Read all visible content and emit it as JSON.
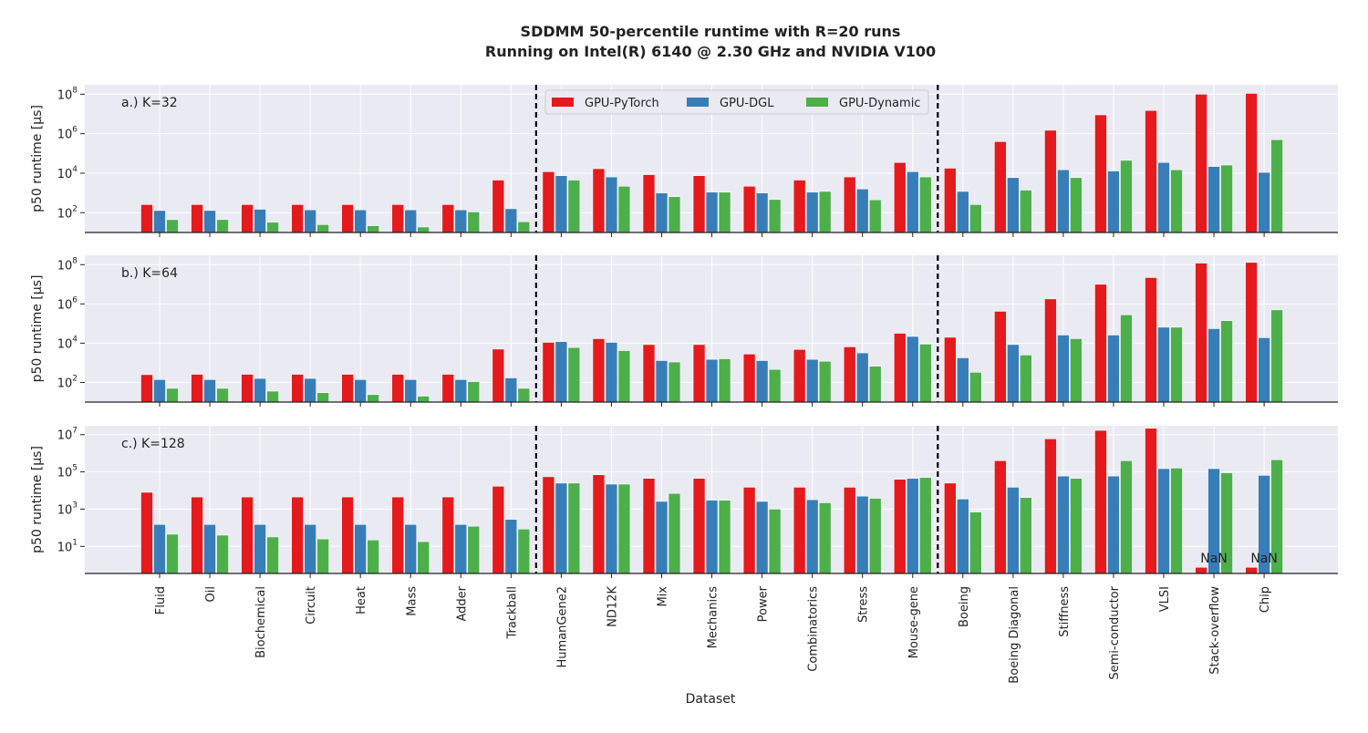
{
  "title_line1": "SDDMM 50-percentile runtime with R=20 runs",
  "title_line2": "Running on Intel(R) 6140 @ 2.30 GHz and NVIDIA V100",
  "xlabel": "Dataset",
  "colors": {
    "GPU-PyTorch": "#e41a1c",
    "GPU-DGL": "#377eb8",
    "GPU-Dynamic": "#4daf4a",
    "background": "#eaeaf2",
    "grid": "#ffffff",
    "separator": "#000000"
  },
  "chart_data": [
    {
      "type": "bar",
      "panel_label": "a.) K=32",
      "ylabel": "p50 runtime [µs]",
      "yscale": "log",
      "ylim": [
        10,
        300000000
      ],
      "yticks": [
        {
          "v": 100,
          "e": "2"
        },
        {
          "v": 10000,
          "e": "4"
        },
        {
          "v": 1000000,
          "e": "6"
        },
        {
          "v": 100000000,
          "e": "8"
        }
      ],
      "categories": [
        "Fluid",
        "Oil",
        "Biochemical",
        "Circuit",
        "Heat",
        "Mass",
        "Adder",
        "Trackball",
        "HumanGene2",
        "ND12K",
        "Mix",
        "Mechanics",
        "Power",
        "Combinatorics",
        "Stress",
        "Mouse-gene",
        "Boeing",
        "Boeing Diagonal",
        "Stiffness",
        "Semi-conductor",
        "VLSI",
        "Stack-overflow",
        "Chip"
      ],
      "series": [
        {
          "name": "GPU-PyTorch",
          "values": [
            260,
            260,
            260,
            260,
            260,
            260,
            260,
            4500,
            12000,
            17000,
            8500,
            7500,
            2200,
            4500,
            6500,
            35000,
            18000,
            400000,
            1500000,
            9000000,
            15000000,
            100000000,
            110000000
          ]
        },
        {
          "name": "GPU-DGL",
          "values": [
            130,
            130,
            150,
            140,
            140,
            140,
            140,
            160,
            7500,
            6500,
            1000,
            1100,
            1000,
            1100,
            1600,
            12000,
            1200,
            6000,
            15000,
            13000,
            35000,
            22000,
            11000
          ]
        },
        {
          "name": "GPU-Dynamic",
          "values": [
            45,
            45,
            33,
            25,
            22,
            19,
            110,
            35,
            4500,
            2200,
            650,
            1100,
            470,
            1200,
            450,
            6500,
            260,
            1400,
            6000,
            45000,
            15000,
            26000,
            500000
          ]
        }
      ],
      "nan": [],
      "legend": {
        "entries": [
          "GPU-PyTorch",
          "GPU-DGL",
          "GPU-Dynamic"
        ],
        "placement": "top-center"
      }
    },
    {
      "type": "bar",
      "panel_label": "b.) K=64",
      "ylabel": "p50 runtime [µs]",
      "yscale": "log",
      "ylim": [
        10,
        300000000
      ],
      "yticks": [
        {
          "v": 100,
          "e": "2"
        },
        {
          "v": 10000,
          "e": "4"
        },
        {
          "v": 1000000,
          "e": "6"
        },
        {
          "v": 100000000,
          "e": "8"
        }
      ],
      "categories": [
        "Fluid",
        "Oil",
        "Biochemical",
        "Circuit",
        "Heat",
        "Mass",
        "Adder",
        "Trackball",
        "HumanGene2",
        "ND12K",
        "Mix",
        "Mechanics",
        "Power",
        "Combinatorics",
        "Stress",
        "Mouse-gene",
        "Boeing",
        "Boeing Diagonal",
        "Stiffness",
        "Semi-conductor",
        "VLSI",
        "Stack-overflow",
        "Chip"
      ],
      "series": [
        {
          "name": "GPU-PyTorch",
          "values": [
            250,
            260,
            260,
            260,
            260,
            260,
            260,
            5000,
            11000,
            17000,
            8500,
            8500,
            2800,
            4800,
            6500,
            32000,
            20000,
            420000,
            1800000,
            10000000,
            22000000,
            120000000,
            130000000
          ]
        },
        {
          "name": "GPU-DGL",
          "values": [
            140,
            140,
            160,
            160,
            140,
            140,
            140,
            170,
            12000,
            11000,
            1300,
            1500,
            1300,
            1500,
            3200,
            22000,
            1800,
            8500,
            26000,
            26000,
            65000,
            55000,
            19000
          ]
        },
        {
          "name": "GPU-Dynamic",
          "values": [
            50,
            50,
            36,
            30,
            24,
            20,
            110,
            50,
            6000,
            4200,
            1100,
            1600,
            460,
            1200,
            670,
            9000,
            330,
            2500,
            17000,
            280000,
            65000,
            140000,
            500000
          ]
        }
      ],
      "nan": []
    },
    {
      "type": "bar",
      "panel_label": "c.) K=128",
      "ylabel": "p50 runtime [µs]",
      "yscale": "log",
      "ylim": [
        0.35,
        30000000
      ],
      "yticks": [
        {
          "v": 10,
          "e": "1"
        },
        {
          "v": 1000,
          "e": "3"
        },
        {
          "v": 100000,
          "e": "5"
        },
        {
          "v": 10000000,
          "e": "7"
        }
      ],
      "categories": [
        "Fluid",
        "Oil",
        "Biochemical",
        "Circuit",
        "Heat",
        "Mass",
        "Adder",
        "Trackball",
        "HumanGene2",
        "ND12K",
        "Mix",
        "Mechanics",
        "Power",
        "Combinatorics",
        "Stress",
        "Mouse-gene",
        "Boeing",
        "Boeing Diagonal",
        "Stiffness",
        "Semi-conductor",
        "VLSI",
        "Stack-overflow",
        "Chip"
      ],
      "series": [
        {
          "name": "GPU-PyTorch",
          "values": [
            8000,
            4500,
            4500,
            4500,
            4500,
            4500,
            4500,
            17000,
            55000,
            70000,
            45000,
            45000,
            15000,
            15000,
            15000,
            40000,
            25000,
            400000,
            6000000,
            17000000,
            22000000,
            0.75,
            0.75
          ]
        },
        {
          "name": "GPU-DGL",
          "values": [
            150,
            150,
            150,
            150,
            150,
            150,
            150,
            280,
            25000,
            22000,
            2600,
            3000,
            2600,
            3200,
            5000,
            45000,
            3500,
            15000,
            60000,
            60000,
            150000,
            150000,
            65000
          ]
        },
        {
          "name": "GPU-Dynamic",
          "values": [
            45,
            40,
            32,
            25,
            22,
            18,
            120,
            85,
            25000,
            22000,
            7000,
            3000,
            1000,
            2200,
            3800,
            50000,
            700,
            4200,
            45000,
            400000,
            160000,
            90000,
            450000
          ]
        }
      ],
      "nan": [
        {
          "category": "Stack-overflow",
          "label": "NaN"
        },
        {
          "category": "Chip",
          "label": "NaN"
        }
      ]
    }
  ]
}
